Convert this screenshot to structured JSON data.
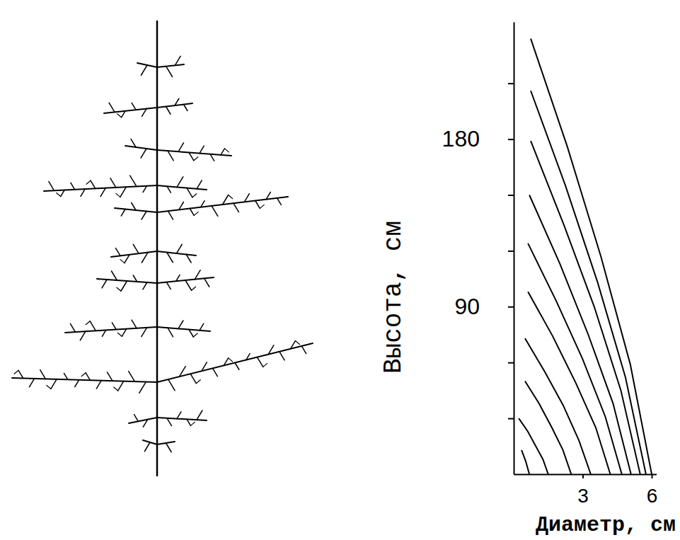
{
  "chart_data": {
    "type": "line",
    "x_label": "Диаметр, см",
    "y_label": "Высота, см",
    "xlim": [
      0,
      6.2
    ],
    "ylim": [
      0,
      243
    ],
    "xticks": [
      3,
      6
    ],
    "yticks": [
      {
        "value": 30,
        "label": null
      },
      {
        "value": 60,
        "label": null
      },
      90,
      {
        "value": 120,
        "label": null
      },
      {
        "value": 150,
        "label": null
      },
      180,
      {
        "value": 210,
        "label": null
      }
    ],
    "color": "#000000",
    "series": [
      {
        "x": [
          0.34,
          0.52,
          0.68
        ],
        "values": [
          13,
          7,
          0
        ]
      },
      {
        "x": [
          0.22,
          0.61,
          0.96,
          1.27,
          1.5
        ],
        "values": [
          30,
          23,
          15,
          8,
          0
        ]
      },
      {
        "x": [
          0.49,
          1.1,
          1.66,
          2.14,
          2.5
        ],
        "values": [
          50,
          38,
          25,
          13,
          0
        ]
      },
      {
        "x": [
          0.49,
          1.35,
          2.15,
          2.84,
          3.35
        ],
        "values": [
          73,
          55,
          37,
          18,
          0
        ]
      },
      {
        "x": [
          0.62,
          1.7,
          2.7,
          3.57,
          4.2
        ],
        "values": [
          98,
          74,
          49,
          25,
          0
        ]
      },
      {
        "x": [
          0.62,
          1.85,
          2.99,
          3.98,
          4.7
        ],
        "values": [
          124,
          93,
          62,
          31,
          0
        ]
      },
      {
        "x": [
          0.68,
          2.01,
          3.24,
          4.32,
          5.1
        ],
        "values": [
          150,
          113,
          75,
          38,
          0
        ]
      },
      {
        "x": [
          0.74,
          2.18,
          3.5,
          4.66,
          5.5
        ],
        "values": [
          179,
          134,
          90,
          45,
          0
        ]
      },
      {
        "x": [
          0.74,
          2.25,
          3.65,
          4.86,
          5.75
        ],
        "values": [
          206,
          155,
          103,
          52,
          0
        ]
      },
      {
        "x": [
          0.74,
          2.33,
          3.79,
          5.07,
          6.0
        ],
        "values": [
          234,
          176,
          117,
          59,
          0
        ]
      }
    ]
  }
}
